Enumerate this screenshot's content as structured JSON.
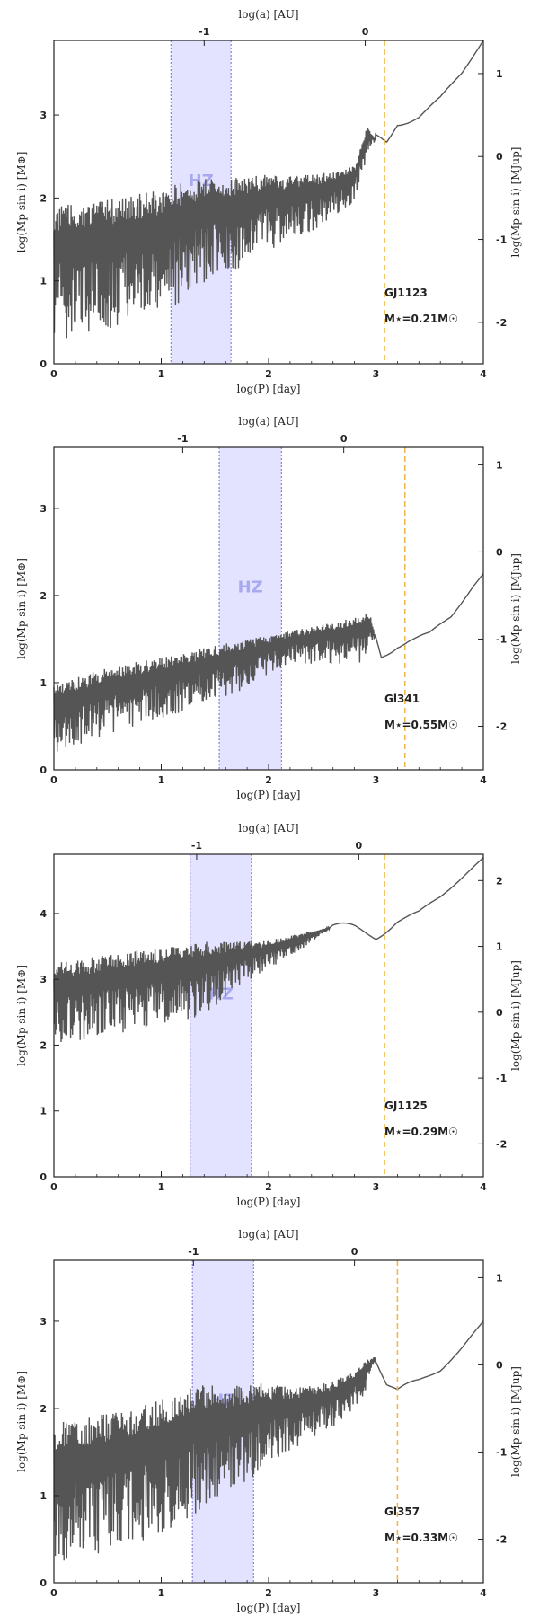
{
  "chart_data": [
    {
      "type": "line",
      "star": "GJ1123",
      "star_mass_label": "M⋆=0.21M☉",
      "xlabel": "log(P) [day]",
      "ylabel": "log(Mp sin i) [M⊕]",
      "ylabel_right": "log(Mp sin i) [MJup]",
      "top_label": "log(a) [AU]",
      "xlim": [
        0,
        4
      ],
      "ylim": [
        0,
        3.9
      ],
      "xticks": [
        "0",
        "1",
        "2",
        "3",
        "4"
      ],
      "yticks": [
        "0",
        "1",
        "2",
        "3"
      ],
      "yticks_right": [
        "-2",
        "-1",
        "0",
        "1"
      ],
      "top_ticks": [
        {
          "label": "-1",
          "logP": 1.4
        },
        {
          "label": "0",
          "logP": 2.9
        }
      ],
      "hz": {
        "label": "HZ",
        "start": 1.09,
        "end": 1.65
      },
      "period_line": 3.08,
      "curve": [
        [
          0,
          1.6
        ],
        [
          0.2,
          1.6
        ],
        [
          0.4,
          1.65
        ],
        [
          0.6,
          1.7
        ],
        [
          0.8,
          1.75
        ],
        [
          1.0,
          1.8
        ],
        [
          1.2,
          1.9
        ],
        [
          1.4,
          2.0
        ],
        [
          1.6,
          2.0
        ],
        [
          1.8,
          2.05
        ],
        [
          2.0,
          2.1
        ],
        [
          2.2,
          2.1
        ],
        [
          2.4,
          2.15
        ],
        [
          2.6,
          2.2
        ],
        [
          2.8,
          2.3
        ],
        [
          2.92,
          2.8
        ],
        [
          3.0,
          2.7
        ],
        [
          3.1,
          2.65
        ],
        [
          3.2,
          2.9
        ],
        [
          3.4,
          3.0
        ],
        [
          3.6,
          3.2
        ],
        [
          3.8,
          3.5
        ],
        [
          4.0,
          3.9
        ]
      ],
      "spread": [
        [
          0,
          1.3
        ],
        [
          1.1,
          1.2
        ],
        [
          1.7,
          0.9
        ],
        [
          2.3,
          0.6
        ],
        [
          2.9,
          0.3
        ],
        [
          3.0,
          0
        ],
        [
          4,
          0
        ]
      ]
    },
    {
      "type": "line",
      "star": "Gl341",
      "star_mass_label": "M⋆=0.55M☉",
      "xlabel": "log(P) [day]",
      "ylabel": "log(Mp sin i) [M⊕]",
      "ylabel_right": "log(Mp sin i) [MJup]",
      "top_label": "log(a) [AU]",
      "xlim": [
        0,
        4
      ],
      "ylim": [
        0,
        3.7
      ],
      "xticks": [
        "0",
        "1",
        "2",
        "3",
        "4"
      ],
      "yticks": [
        "0",
        "1",
        "2",
        "3"
      ],
      "yticks_right": [
        "-2",
        "-1",
        "0",
        "1"
      ],
      "top_ticks": [
        {
          "label": "-1",
          "logP": 1.2
        },
        {
          "label": "0",
          "logP": 2.7
        }
      ],
      "hz": {
        "label": "HZ",
        "start": 1.54,
        "end": 2.12
      },
      "period_line": 3.27,
      "curve": [
        [
          0,
          0.85
        ],
        [
          0.2,
          0.9
        ],
        [
          0.4,
          0.98
        ],
        [
          0.6,
          1.05
        ],
        [
          0.8,
          1.1
        ],
        [
          1.0,
          1.15
        ],
        [
          1.2,
          1.2
        ],
        [
          1.4,
          1.27
        ],
        [
          1.6,
          1.33
        ],
        [
          1.8,
          1.38
        ],
        [
          2.0,
          1.45
        ],
        [
          2.2,
          1.52
        ],
        [
          2.4,
          1.56
        ],
        [
          2.6,
          1.6
        ],
        [
          2.8,
          1.65
        ],
        [
          2.95,
          1.7
        ],
        [
          3.05,
          1.3
        ],
        [
          3.2,
          1.45
        ],
        [
          3.3,
          1.5
        ],
        [
          3.5,
          1.55
        ],
        [
          3.7,
          1.75
        ],
        [
          3.9,
          2.1
        ],
        [
          4.0,
          2.25
        ]
      ],
      "spread": [
        [
          0,
          0.65
        ],
        [
          1.2,
          0.55
        ],
        [
          1.8,
          0.45
        ],
        [
          2.2,
          0.3
        ],
        [
          2.9,
          0.45
        ],
        [
          3.0,
          0
        ],
        [
          4,
          0
        ]
      ]
    },
    {
      "type": "line",
      "star": "GJ1125",
      "star_mass_label": "M⋆=0.29M☉",
      "xlabel": "log(P) [day]",
      "ylabel": "log(Mp sin i) [M⊕]",
      "ylabel_right": "log(Mp sin i) [MJup]",
      "top_label": "log(a) [AU]",
      "xlim": [
        0,
        4
      ],
      "ylim": [
        0,
        4.9
      ],
      "xticks": [
        "0",
        "1",
        "2",
        "3",
        "4"
      ],
      "yticks": [
        "0",
        "1",
        "2",
        "3",
        "4"
      ],
      "yticks_right": [
        "-2",
        "-1",
        "0",
        "1",
        "2"
      ],
      "top_ticks": [
        {
          "label": "-1",
          "logP": 1.33
        },
        {
          "label": "0",
          "logP": 2.84
        }
      ],
      "hz": {
        "label": "HZ",
        "start": 1.27,
        "end": 1.84
      },
      "period_line": 3.08,
      "curve": [
        [
          0,
          3.0
        ],
        [
          0.2,
          3.05
        ],
        [
          0.4,
          3.1
        ],
        [
          0.6,
          3.15
        ],
        [
          0.8,
          3.2
        ],
        [
          1.0,
          3.25
        ],
        [
          1.2,
          3.3
        ],
        [
          1.4,
          3.35
        ],
        [
          1.6,
          3.4
        ],
        [
          1.8,
          3.45
        ],
        [
          2.0,
          3.5
        ],
        [
          2.2,
          3.6
        ],
        [
          2.4,
          3.7
        ],
        [
          2.6,
          3.8
        ],
        [
          2.8,
          3.75
        ],
        [
          3.0,
          3.65
        ],
        [
          3.2,
          3.9
        ],
        [
          3.4,
          4.0
        ],
        [
          3.6,
          4.25
        ],
        [
          3.8,
          4.55
        ],
        [
          4.0,
          4.85
        ]
      ],
      "spread": [
        [
          0,
          1.0
        ],
        [
          1.0,
          0.95
        ],
        [
          1.4,
          0.9
        ],
        [
          1.9,
          0.4
        ],
        [
          2.3,
          0.2
        ],
        [
          2.6,
          0
        ],
        [
          4,
          0
        ]
      ]
    },
    {
      "type": "line",
      "star": "Gl357",
      "star_mass_label": "M⋆=0.33M☉",
      "xlabel": "log(P) [day]",
      "ylabel": "log(Mp sin i) [M⊕]",
      "ylabel_right": "log(Mp sin i) [MJup]",
      "top_label": "log(a) [AU]",
      "xlim": [
        0,
        4
      ],
      "ylim": [
        0,
        3.7
      ],
      "xticks": [
        "0",
        "1",
        "2",
        "3",
        "4"
      ],
      "yticks": [
        "0",
        "1",
        "2",
        "3"
      ],
      "yticks_right": [
        "-2",
        "-1",
        "0",
        "1"
      ],
      "top_ticks": [
        {
          "label": "-1",
          "logP": 1.3
        },
        {
          "label": "0",
          "logP": 2.8
        }
      ],
      "hz": {
        "label": "HZ",
        "start": 1.29,
        "end": 1.86
      },
      "period_line": 3.2,
      "curve": [
        [
          0,
          1.5
        ],
        [
          0.2,
          1.55
        ],
        [
          0.4,
          1.6
        ],
        [
          0.6,
          1.65
        ],
        [
          0.8,
          1.7
        ],
        [
          1.0,
          1.8
        ],
        [
          1.2,
          1.9
        ],
        [
          1.4,
          2.0
        ],
        [
          1.6,
          2.0
        ],
        [
          1.8,
          2.05
        ],
        [
          2.0,
          2.1
        ],
        [
          2.2,
          2.1
        ],
        [
          2.4,
          2.15
        ],
        [
          2.6,
          2.2
        ],
        [
          2.8,
          2.35
        ],
        [
          3.0,
          2.6
        ],
        [
          3.1,
          2.3
        ],
        [
          3.2,
          2.2
        ],
        [
          3.4,
          2.3
        ],
        [
          3.6,
          2.45
        ],
        [
          3.8,
          2.7
        ],
        [
          4.0,
          3.0
        ]
      ],
      "spread": [
        [
          0,
          1.3
        ],
        [
          1.2,
          1.25
        ],
        [
          1.8,
          0.9
        ],
        [
          2.4,
          0.5
        ],
        [
          2.9,
          0.3
        ],
        [
          3.0,
          0
        ],
        [
          4,
          0
        ]
      ]
    }
  ]
}
